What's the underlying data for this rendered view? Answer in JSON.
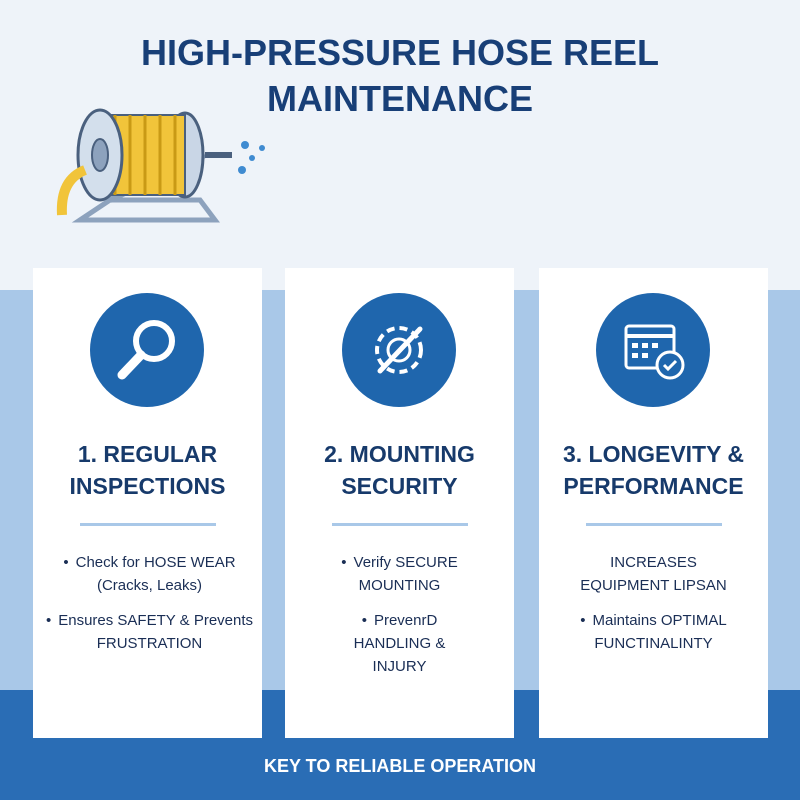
{
  "header": {
    "title_lines": [
      "HIGH-PRESSURE HOSE REEL",
      "MAINTENANCE"
    ]
  },
  "cards": [
    {
      "heading_lines": [
        "1. REGULAR",
        "INSPECTIONS"
      ],
      "bullets": [
        "Check for HOSE WEAR (Cracks, Leaks)",
        "Ensures SAFETY & Prevents FRUSTRATION"
      ]
    },
    {
      "heading_lines": [
        "2. MOUNTING",
        "SECURITY"
      ],
      "bullets": [
        "Verify SECURE MOUNTING",
        "PrevenrD HANDLING & INJURY"
      ]
    },
    {
      "heading_lines": [
        "3. LONGEVITY &",
        "PERFORMANCE"
      ],
      "lead": "INCREASES EQUIPMENT LIPSAN",
      "bullets": [
        "Maintains OPTIMAL FUNCTINALINTY"
      ]
    }
  ],
  "footer": {
    "text": "KEY TO RELIABLE OPERATION"
  }
}
